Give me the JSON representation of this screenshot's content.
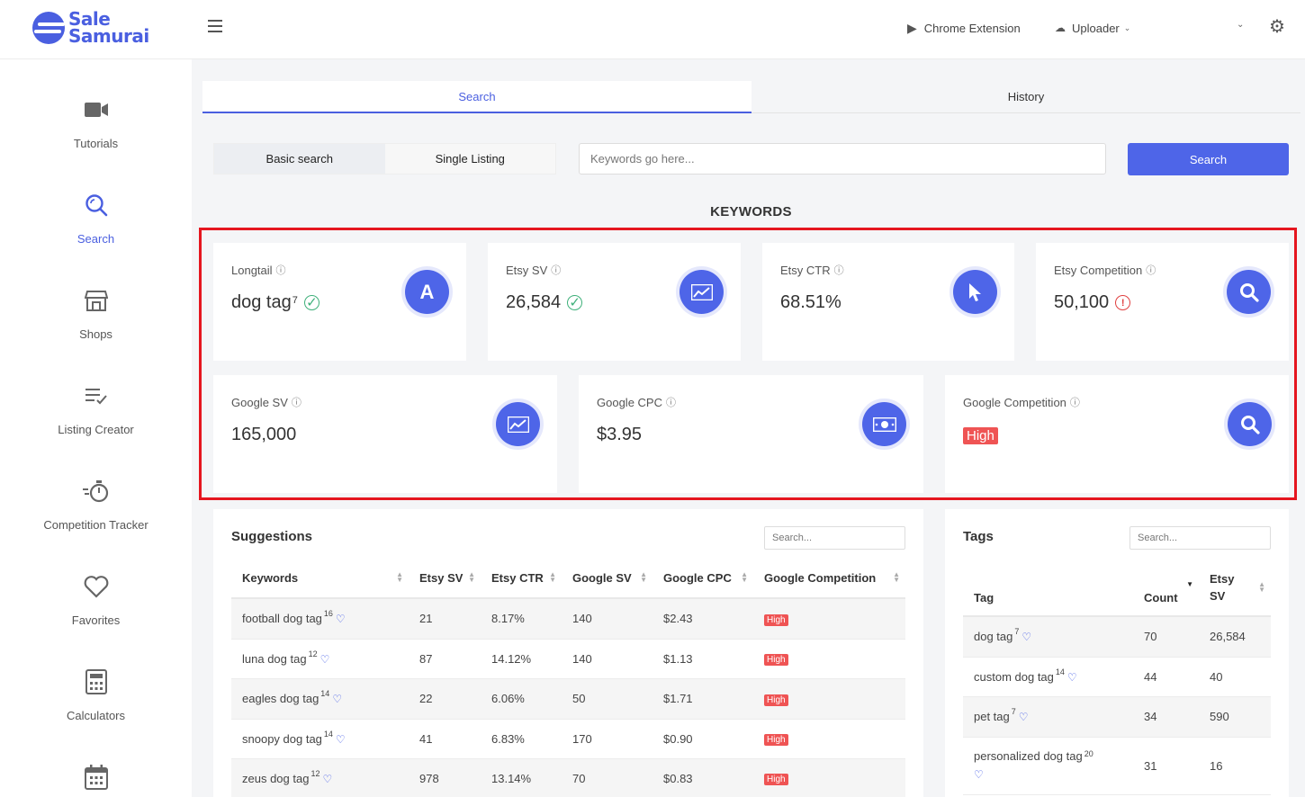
{
  "brand": {
    "line1": "Sale",
    "line2": "Samurai",
    "color": "#4a5fe0"
  },
  "topbar": {
    "chrome_extension": "Chrome Extension",
    "uploader": "Uploader"
  },
  "sidebar": {
    "items": [
      {
        "label": "Tutorials",
        "icon": "video-camera-icon"
      },
      {
        "label": "Search",
        "icon": "search-icon",
        "active": true
      },
      {
        "label": "Shops",
        "icon": "store-icon"
      },
      {
        "label": "Listing Creator",
        "icon": "list-edit-icon"
      },
      {
        "label": "Competition Tracker",
        "icon": "stopwatch-icon"
      },
      {
        "label": "Favorites",
        "icon": "heart-icon"
      },
      {
        "label": "Calculators",
        "icon": "calculator-icon"
      },
      {
        "label": "",
        "icon": "calendar-icon"
      }
    ]
  },
  "tabs": {
    "search": "Search",
    "history": "History"
  },
  "modes": {
    "basic": "Basic search",
    "single": "Single Listing"
  },
  "search": {
    "placeholder": "Keywords go here...",
    "button": "Search"
  },
  "section_title": "KEYWORDS",
  "metrics": {
    "longtail": {
      "label": "Longtail",
      "value": "dog tag",
      "sup": "7",
      "icon_letter": "A"
    },
    "etsy_sv": {
      "label": "Etsy SV",
      "value": "26,584"
    },
    "etsy_ctr": {
      "label": "Etsy CTR",
      "value": "68.51%"
    },
    "etsy_competition": {
      "label": "Etsy Competition",
      "value": "50,100"
    },
    "google_sv": {
      "label": "Google SV",
      "value": "165,000"
    },
    "google_cpc": {
      "label": "Google CPC",
      "value": "$3.95"
    },
    "google_competition": {
      "label": "Google Competition",
      "value": "High"
    }
  },
  "suggestions": {
    "title": "Suggestions",
    "search_placeholder": "Search...",
    "columns": [
      "Keywords",
      "Etsy SV",
      "Etsy CTR",
      "Google SV",
      "Google CPC",
      "Google Competition"
    ],
    "rows": [
      {
        "keyword": "football dog tag",
        "sup": "16",
        "etsy_sv": "21",
        "etsy_ctr": "8.17%",
        "google_sv": "140",
        "google_cpc": "$2.43",
        "competition": "High"
      },
      {
        "keyword": "luna dog tag",
        "sup": "12",
        "etsy_sv": "87",
        "etsy_ctr": "14.12%",
        "google_sv": "140",
        "google_cpc": "$1.13",
        "competition": "High"
      },
      {
        "keyword": "eagles dog tag",
        "sup": "14",
        "etsy_sv": "22",
        "etsy_ctr": "6.06%",
        "google_sv": "50",
        "google_cpc": "$1.71",
        "competition": "High"
      },
      {
        "keyword": "snoopy dog tag",
        "sup": "14",
        "etsy_sv": "41",
        "etsy_ctr": "6.83%",
        "google_sv": "170",
        "google_cpc": "$0.90",
        "competition": "High"
      },
      {
        "keyword": "zeus dog tag",
        "sup": "12",
        "etsy_sv": "978",
        "etsy_ctr": "13.14%",
        "google_sv": "70",
        "google_cpc": "$0.83",
        "competition": "High"
      }
    ]
  },
  "tags": {
    "title": "Tags",
    "search_placeholder": "Search...",
    "columns": [
      "Tag",
      "Count",
      "Etsy",
      "SV"
    ],
    "rows": [
      {
        "tag": "dog tag",
        "sup": "7",
        "count": "70",
        "etsy_sv": "26,584"
      },
      {
        "tag": "custom dog tag",
        "sup": "14",
        "count": "44",
        "etsy_sv": "40"
      },
      {
        "tag": "pet tag",
        "sup": "7",
        "count": "34",
        "etsy_sv": "590"
      },
      {
        "tag": "personalized dog tag",
        "sup": "20",
        "count": "31",
        "etsy_sv": "16"
      }
    ]
  }
}
